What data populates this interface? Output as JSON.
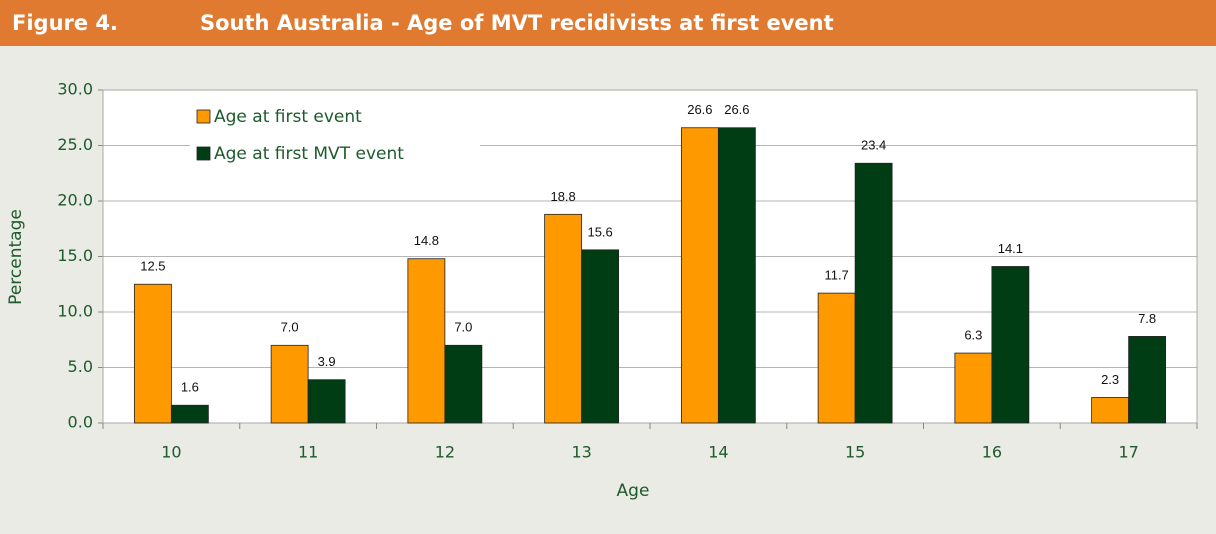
{
  "chart_data": {
    "type": "bar",
    "figure_label": "Figure 4.",
    "title": "South Australia - Age of MVT recidivists at first event",
    "x_label": "Age",
    "y_label": "Percentage",
    "categories": [
      "10",
      "11",
      "12",
      "13",
      "14",
      "15",
      "16",
      "17"
    ],
    "series": [
      {
        "name": "Age at first event",
        "color": "#ff9900",
        "values": [
          12.5,
          7.0,
          14.8,
          18.8,
          26.6,
          11.7,
          6.3,
          2.3
        ],
        "value_labels": [
          "12.5",
          "7.0",
          "14.8",
          "18.8",
          "26.6",
          "11.7",
          "6.3",
          "2.3"
        ]
      },
      {
        "name": "Age at first MVT event",
        "color": "#003d14",
        "values": [
          1.6,
          3.9,
          7.0,
          15.6,
          26.6,
          23.4,
          14.1,
          7.8
        ],
        "value_labels": [
          "1.6",
          "3.9",
          "7.0",
          "15.6",
          "26.6",
          "23.4",
          "14.1",
          "7.8"
        ]
      }
    ],
    "ylim": [
      0,
      30
    ],
    "yticks": [
      {
        "value": 0,
        "label": "0.0"
      },
      {
        "value": 5,
        "label": "5.0"
      },
      {
        "value": 10,
        "label": "10.0"
      },
      {
        "value": 15,
        "label": "15.0"
      },
      {
        "value": 20,
        "label": "20.0"
      },
      {
        "value": 25,
        "label": "25.0"
      },
      {
        "value": 30,
        "label": "30.0"
      }
    ],
    "grid": true,
    "legend": "upper left"
  }
}
